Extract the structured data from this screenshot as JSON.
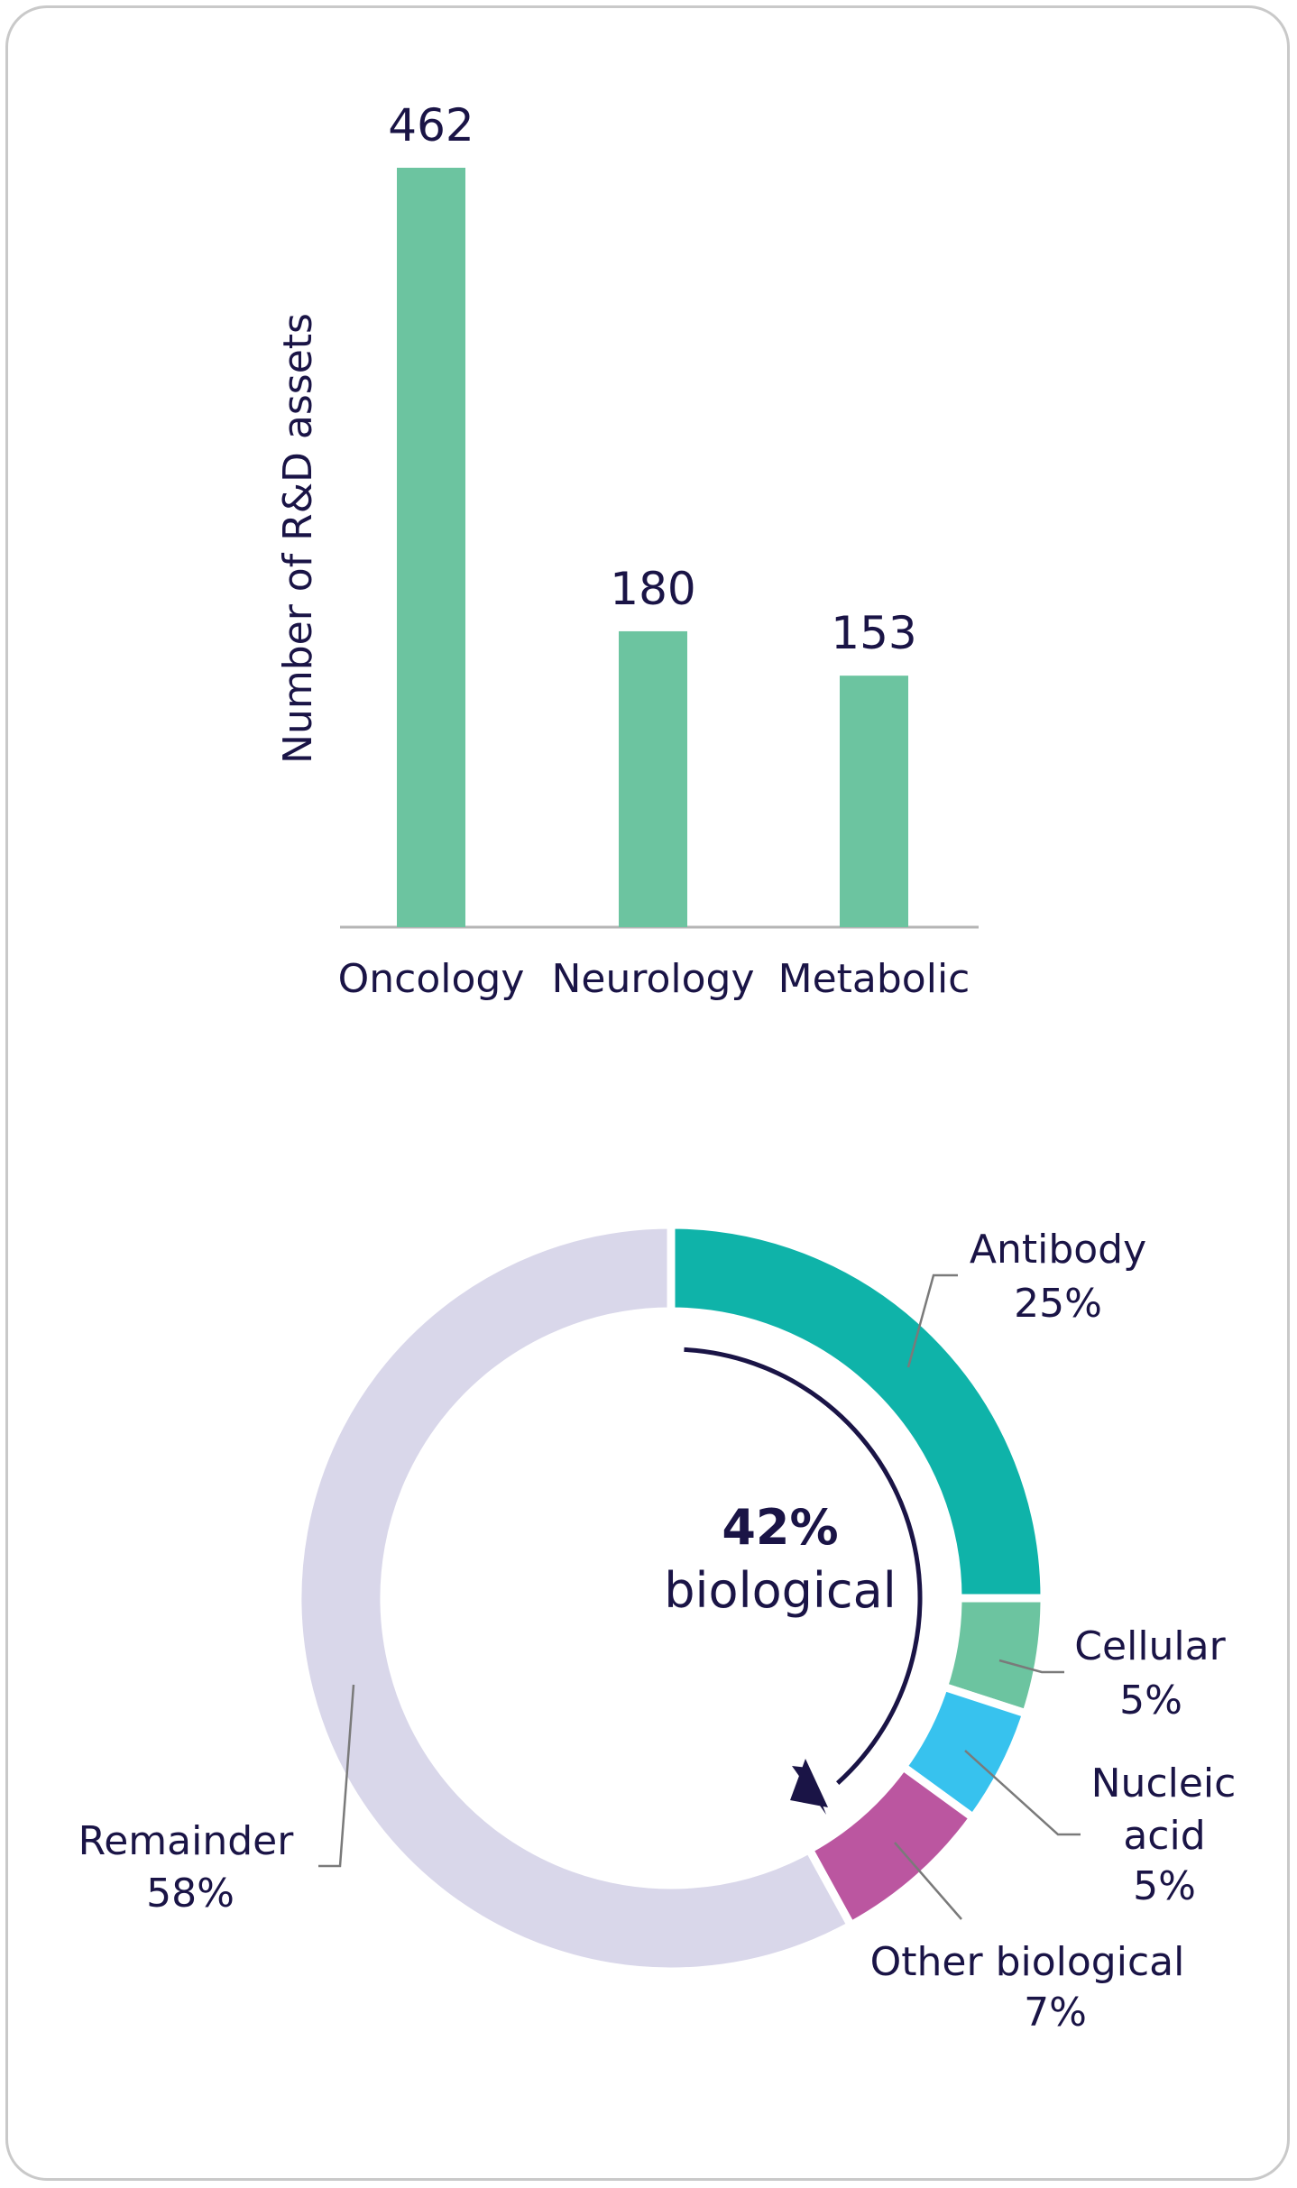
{
  "chart_data": [
    {
      "type": "bar",
      "title": "",
      "xlabel": "",
      "ylabel": "Number of R&D assets",
      "categories": [
        "Oncology",
        "Neurology",
        "Metabolic"
      ],
      "values": [
        462,
        180,
        153
      ],
      "data_labels": [
        "462",
        "180",
        "153"
      ],
      "ylim": [
        0,
        462
      ],
      "grid": false,
      "colors": {
        "bar": "#6cc4a0",
        "axis": "#b5b5b5",
        "text": "#1a1446"
      }
    },
    {
      "type": "pie",
      "subtype": "donut",
      "center_value": "42%",
      "center_label": "biological",
      "slices": [
        {
          "name": "Antibody",
          "label_lines": [
            "Antibody",
            "25%"
          ],
          "value": 25,
          "color": "#0fb3a9"
        },
        {
          "name": "Cellular",
          "label_lines": [
            "Cellular",
            "5%"
          ],
          "value": 5,
          "color": "#6cc4a0"
        },
        {
          "name": "Nucleic acid",
          "label_lines": [
            "Nucleic",
            "acid",
            "5%"
          ],
          "value": 5,
          "color": "#37c2ee"
        },
        {
          "name": "Other biological",
          "label_lines": [
            "Other biological",
            "7%"
          ],
          "value": 7,
          "color": "#bb56a0"
        },
        {
          "name": "Remainder",
          "label_lines": [
            "Remainder",
            "58%"
          ],
          "value": 58,
          "color": "#d9d7ea"
        }
      ],
      "colors": {
        "arrow": "#1a1446",
        "leader": "#7a7a7a"
      }
    }
  ]
}
